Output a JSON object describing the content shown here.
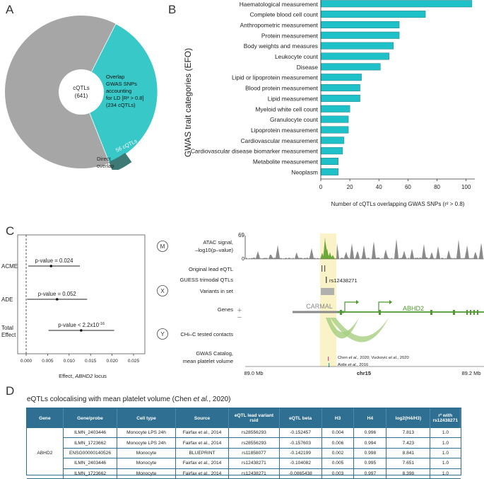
{
  "panels": {
    "a": "A",
    "b": "B",
    "c": "C",
    "d": "D"
  },
  "donut": {
    "center_label": "cQTLs",
    "center_count": "(641)",
    "overlap_lines": [
      "Overlap",
      "GWAS SNPs",
      "accounting",
      "for LD [R² > 0.8]",
      "(234 cQTLs)"
    ],
    "direct_badge": "56 cQTLs",
    "direct_lines": [
      "Direct",
      "overlap"
    ],
    "values": {
      "total": 641,
      "overlap": 234,
      "direct": 56
    },
    "colors": {
      "remaining": "#a6a6a6",
      "overlap": "#38c8c8",
      "direct": "#3d7a76"
    }
  },
  "chart_data": [
    {
      "type": "bar",
      "orientation": "horizontal",
      "title": "",
      "ylabel": "GWAS trait categories (EFO)",
      "xlabel": "Number of cQTLs overlapping GWAS SNPs (r² > 0.8)",
      "xlim": [
        0,
        106
      ],
      "xticks": [
        0,
        20,
        40,
        60,
        80,
        100
      ],
      "color": "#1ec1c8",
      "categories": [
        "Haematological measurement",
        "Complete blood cell count",
        "Anthropometric measurement",
        "Protein measurement",
        "Body weights and measures",
        "Leukocyte count",
        "Disease",
        "Lipid or lipoprotein measurement",
        "Blood protein measurement",
        "Lipid measurement",
        "Myeloid white cell count",
        "Granulocyte count",
        "Lipoprotein measurement",
        "Cardiovascular measurement",
        "Cardiovascular disease biomarker measurement",
        "Metabolite measurement",
        "Neoplasm"
      ],
      "values": [
        104,
        72,
        54,
        54,
        50,
        47,
        41,
        28,
        27,
        27,
        20,
        19,
        19,
        16,
        15,
        12,
        12
      ]
    },
    {
      "type": "scatter",
      "title": "",
      "xlabel": "Effect, ABHD2 locus",
      "xlabel_parts": [
        "Effect, ",
        "ABHD2",
        " locus"
      ],
      "xlim": [
        -0.001,
        0.025
      ],
      "xticks": [
        "0.000",
        "0.005",
        "0.010",
        "0.015",
        "0.020",
        "0.025"
      ],
      "tick_values": [
        0,
        0.005,
        0.01,
        0.015,
        0.02,
        0.025
      ],
      "points": [
        {
          "label_lines": [
            "ACME"
          ],
          "estimate": 0.0058,
          "ci": [
            0.0005,
            0.0125
          ],
          "pvalue": "p-value = 0.024"
        },
        {
          "label_lines": [
            "ADE"
          ],
          "estimate": 0.0072,
          "ci": [
            0.0002,
            0.0142
          ],
          "pvalue": "p-value = 0.052"
        },
        {
          "label_lines": [
            "Total",
            "Effect"
          ],
          "estimate": 0.0128,
          "ci": [
            0.0052,
            0.0205
          ],
          "pvalue_base": "p-value < 2.2x10",
          "pvalue_exp": "-16"
        }
      ]
    }
  ],
  "track": {
    "icons": {
      "m": "M",
      "x": "X",
      "y": "Y"
    },
    "atac_lines": [
      "ATAC signal,",
      "–log10(p–value)"
    ],
    "atac_max": "69",
    "atac_min": "0",
    "rows": [
      "Original lead eQTL",
      "GUESS trimodal QTLs",
      "Variants in set",
      "Genes",
      "CHi–C tested contacts"
    ],
    "gwas_lines": [
      "GWAS Catalog,",
      "mean platelet volume"
    ],
    "rsid": "rs12438271",
    "gene_left": "CARMAL",
    "gene_right": "ABHD2",
    "plus": "+",
    "minus": "−",
    "citation_1": "Chen et al., 2020; Vuckovic et al., 2020",
    "citation_2": "Astle et al., 2016",
    "axis_left": "89.0 Mb",
    "axis_mid": "chr15",
    "axis_right": "89.2 Mb",
    "colors": {
      "atac": "#8a8a8a",
      "atac_peak": "#6ea83a",
      "highlight": "#fbf3c8",
      "gene": "#4e9a2e",
      "loop": "#a8cf82"
    }
  },
  "table": {
    "title_pre": "eQTLs colocalising with mean platelet volume (Chen ",
    "title_em": "et al.",
    "title_post": ", 2020)",
    "headers": [
      "Gene",
      "Gene/probe",
      "Cell type",
      "Source",
      "eQTL lead variant rsid",
      "eQTL beta",
      "H3",
      "H4",
      "log2(H4/H3)",
      "r² with rs12438271"
    ],
    "gene": "ABHD2",
    "rows": [
      [
        "ILMN_2403446",
        "Monocyte LPS 24h",
        "Fairfax et al., 2014",
        "rs28556293",
        "-0.152457",
        "0.004",
        "0.996",
        "7.813",
        "1.0"
      ],
      [
        "ILMN_1723662",
        "Monocyte LPS 24h",
        "Fairfax et al., 2014",
        "rs28556293",
        "-0.157603",
        "0.006",
        "0.994",
        "7.423",
        "1.0"
      ],
      [
        "ENSG00000140526",
        "Monocyte",
        "BLUEPRINT",
        "rs11858077",
        "-0.142199",
        "0.002",
        "0.998",
        "8.841",
        "1.0"
      ],
      [
        "ILMN_2403446",
        "Monocyte",
        "Fairfax et al., 2014",
        "rs12438271",
        "-0.104082",
        "0.005",
        "0.995",
        "7.651",
        "1.0"
      ],
      [
        "ILMN_1723662",
        "Monocyte",
        "Fairfax et al., 2014",
        "rs12438271",
        "-0.0865438",
        "0.003",
        "0.997",
        "8.398",
        "1.0"
      ]
    ],
    "header_color": "#2f6f91"
  }
}
